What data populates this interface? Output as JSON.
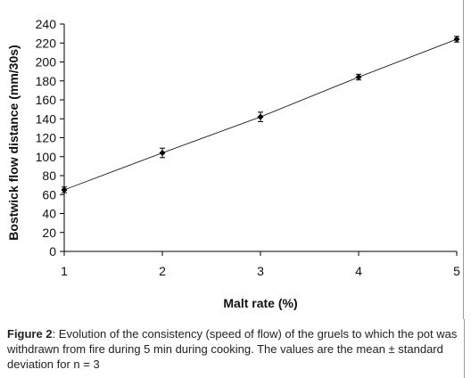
{
  "chart_data": {
    "type": "line",
    "xlabel": "Malt rate (%)",
    "ylabel": "Bostwick flow distance (mm/30s)",
    "x": [
      1,
      2,
      3,
      4,
      5
    ],
    "y": [
      65,
      104,
      142,
      184,
      224
    ],
    "error": [
      3,
      5,
      5,
      3,
      3
    ],
    "xticks": [
      "1",
      "2",
      "3",
      "4",
      "5"
    ],
    "yticks": [
      "0",
      "20",
      "40",
      "60",
      "80",
      "100",
      "120",
      "140",
      "160",
      "180",
      "200",
      "220",
      "240"
    ],
    "xlim": [
      1,
      5
    ],
    "ylim": [
      0,
      240
    ],
    "grid": false,
    "legend": "none",
    "line_color": "#000000"
  },
  "caption": {
    "label": "Figure 2",
    "text": ": Evolution of the consistency (speed of flow) of the gruels to which the pot was withdrawn from fire during 5 min during cooking. The values are the mean ± standard deviation for n = 3"
  }
}
